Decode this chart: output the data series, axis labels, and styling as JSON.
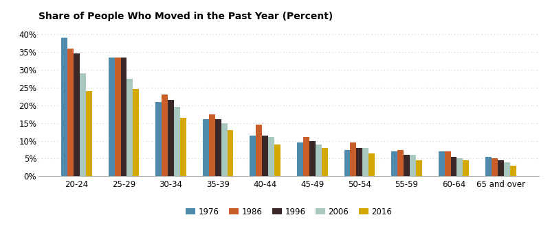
{
  "title": "Share of People Who Moved in the Past Year (Percent)",
  "categories": [
    "20-24",
    "25-29",
    "30-34",
    "35-39",
    "40-44",
    "45-49",
    "50-54",
    "55-59",
    "60-64",
    "65 and over"
  ],
  "years": [
    "1976",
    "1986",
    "1996",
    "2006",
    "2016"
  ],
  "colors": [
    "#4e8aab",
    "#c95e2a",
    "#3a2728",
    "#a8c8c0",
    "#d4a800"
  ],
  "values": {
    "1976": [
      39.0,
      33.5,
      21.0,
      16.0,
      11.5,
      9.5,
      7.5,
      7.0,
      7.0,
      5.5
    ],
    "1986": [
      36.0,
      33.5,
      23.0,
      17.5,
      14.5,
      11.0,
      9.5,
      7.5,
      7.0,
      5.0
    ],
    "1996": [
      34.5,
      33.5,
      21.5,
      16.0,
      11.5,
      10.0,
      8.0,
      6.0,
      5.5,
      4.5
    ],
    "2006": [
      29.0,
      27.5,
      19.5,
      15.0,
      11.0,
      9.0,
      8.0,
      6.0,
      5.0,
      4.0
    ],
    "2016": [
      24.0,
      24.5,
      16.5,
      13.0,
      9.0,
      8.0,
      6.5,
      4.5,
      4.5,
      3.0
    ]
  },
  "ylim": [
    0,
    42
  ],
  "yticks": [
    0,
    5,
    10,
    15,
    20,
    25,
    30,
    35,
    40
  ],
  "background_color": "#ffffff",
  "grid_color": "#cccccc",
  "bar_width": 0.13,
  "title_fontsize": 10.0,
  "tick_fontsize": 8.5,
  "legend_fontsize": 8.5
}
